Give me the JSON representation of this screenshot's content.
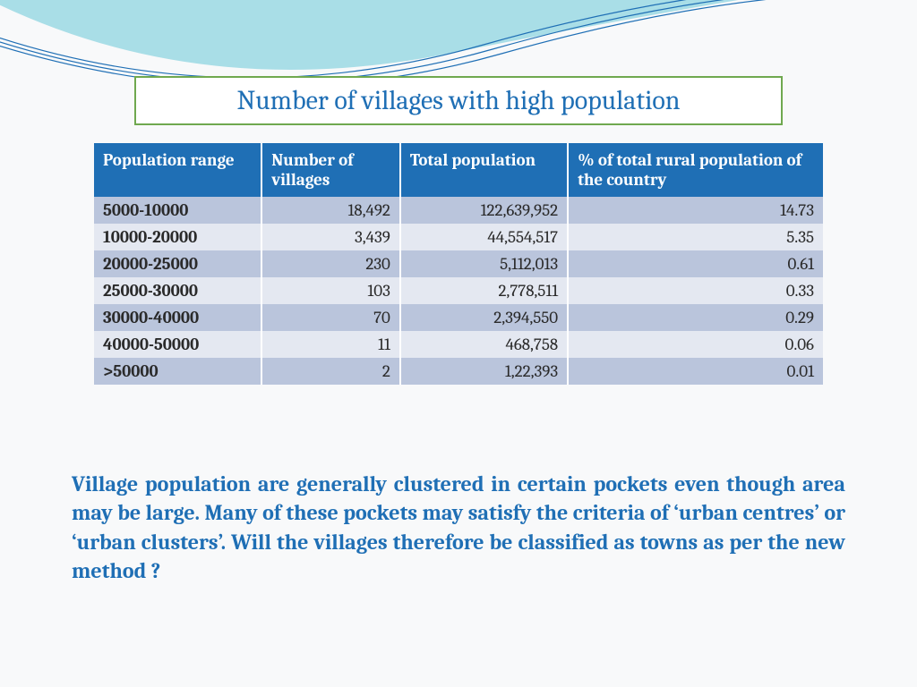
{
  "title": "Number of villages with high population",
  "title_color": "#1f6fb5",
  "title_border_color": "#6fa84f",
  "title_fontsize": 30,
  "wave": {
    "fill_color": "#8fd4e0",
    "line_color": "#1f6fb5",
    "line_width": 1.2
  },
  "table": {
    "type": "table",
    "header_bg": "#1f6fb5",
    "header_text_color": "#ffffff",
    "row_odd_bg": "#bac5dc",
    "row_even_bg": "#e4e8f1",
    "cell_fontsize": 19,
    "columns": [
      {
        "label": "Population range",
        "width_pct": 23,
        "align": "left"
      },
      {
        "label": "Number of villages",
        "width_pct": 19,
        "align": "right"
      },
      {
        "label": "Total population",
        "width_pct": 23,
        "align": "right"
      },
      {
        "label": "% of total  rural population of the country",
        "width_pct": 35,
        "align": "right"
      }
    ],
    "rows": [
      [
        "5000-10000",
        "18,492",
        "122,639,952",
        "14.73"
      ],
      [
        "10000-20000",
        "3,439",
        "44,554,517",
        "5.35"
      ],
      [
        "20000-25000",
        "230",
        "5,112,013",
        "0.61"
      ],
      [
        "25000-30000",
        "103",
        "2,778,511",
        "0.33"
      ],
      [
        "30000-40000",
        "70",
        "2,394,550",
        "0.29"
      ],
      [
        "40000-50000",
        "11",
        "468,758",
        "0.06"
      ],
      [
        ">50000",
        "2",
        "1,22,393",
        "0.01"
      ]
    ]
  },
  "body_text": "Village population are generally clustered in certain pockets even though area may be large. Many of these pockets  may satisfy the criteria of ‘urban centres’ or ‘urban clusters’. Will the villages therefore be classified as towns as per the new method ?",
  "body_text_color": "#1f6fb5",
  "body_text_fontsize": 24
}
